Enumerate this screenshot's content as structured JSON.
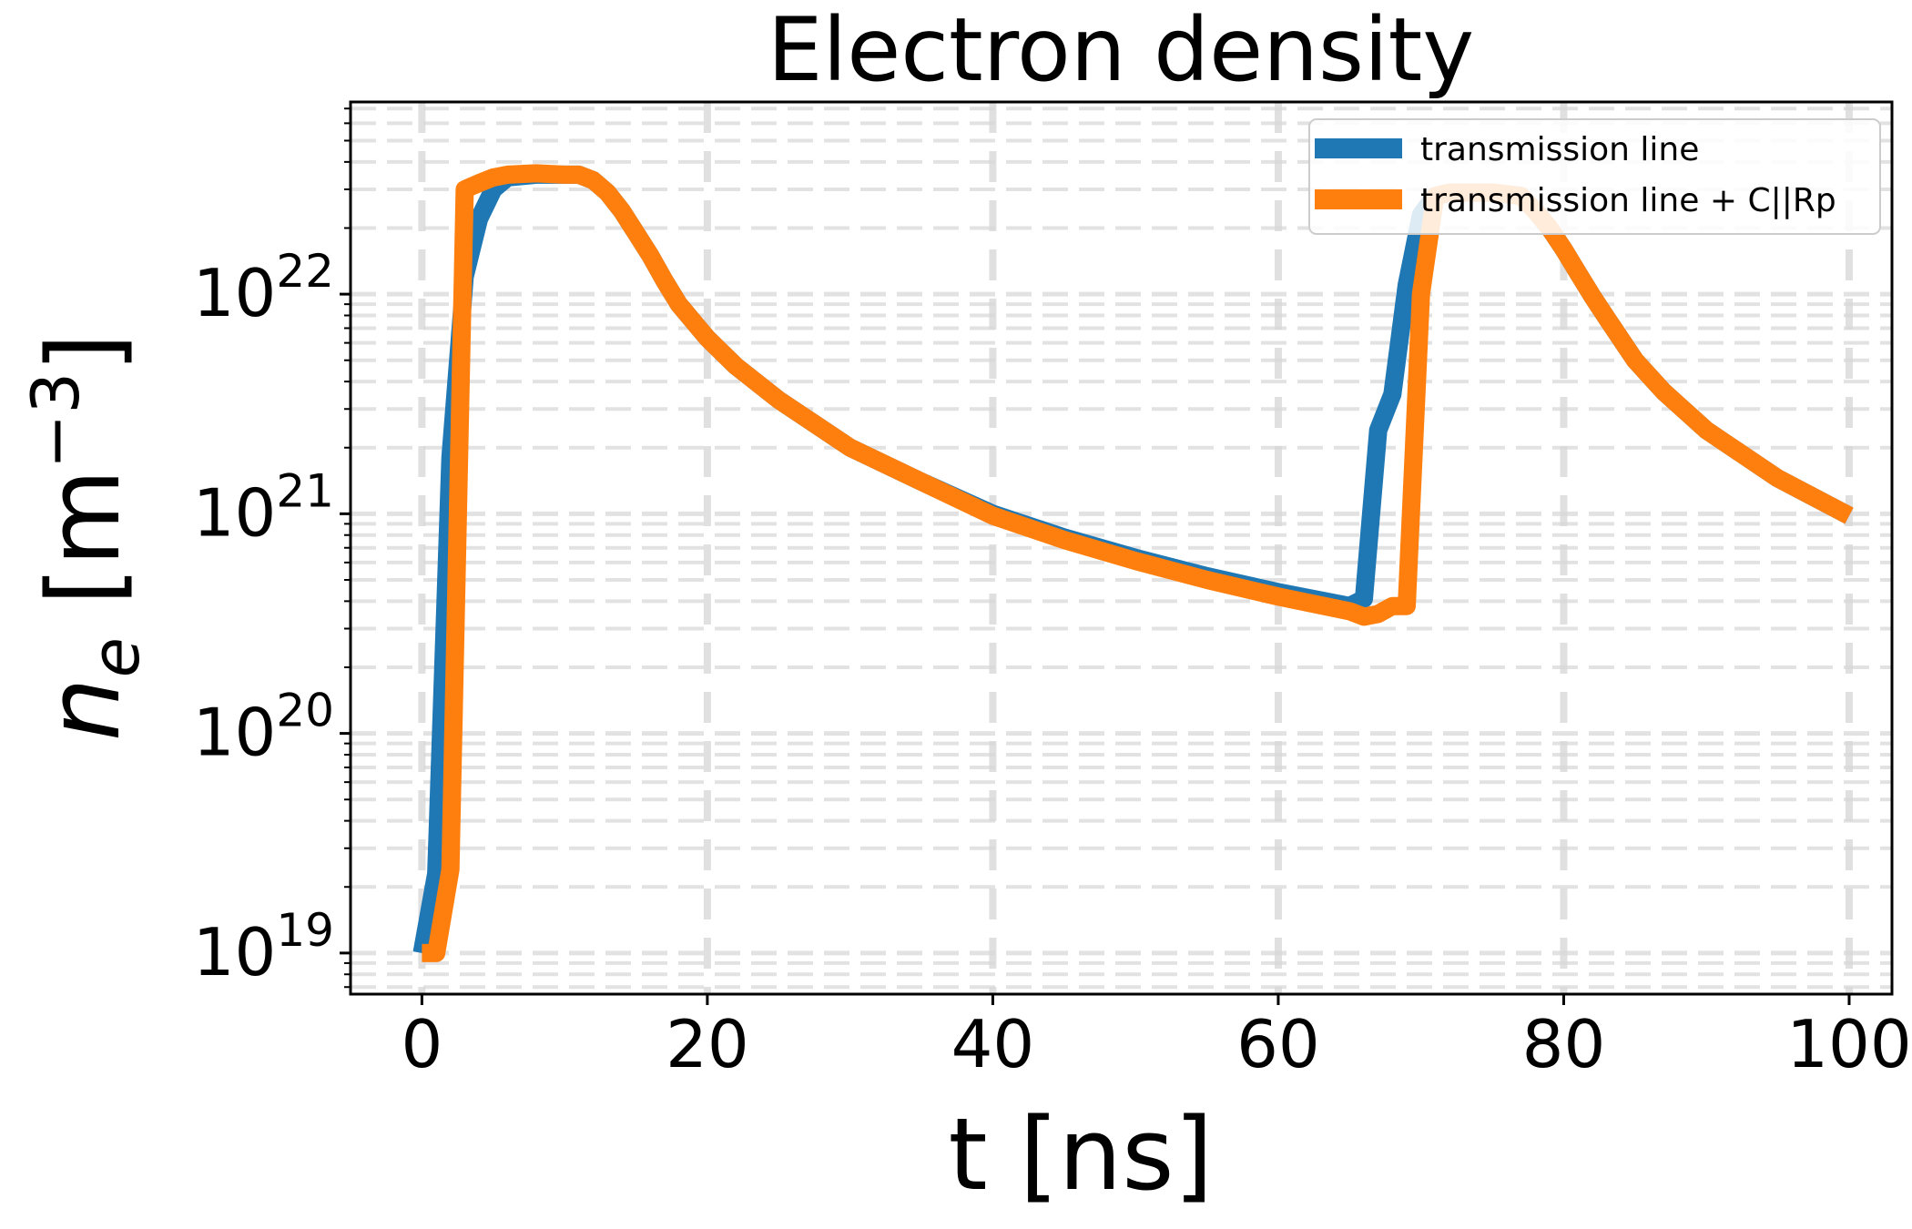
{
  "chart_data": {
    "type": "line",
    "title": "Electron density",
    "xlabel": "t [ns]",
    "ylabel": {
      "symbol": "n",
      "subscript": "e",
      "unit_open": " [m",
      "unit_exp": "−3",
      "unit_close": "]"
    },
    "xlim": [
      -5,
      103
    ],
    "ylim": [
      6.5e+18,
      7.5e+22
    ],
    "yscale": "log",
    "grid": true,
    "legend_position": "top-right",
    "xticks": [
      0,
      20,
      40,
      60,
      80,
      100
    ],
    "xtick_labels": [
      "0",
      "20",
      "40",
      "60",
      "80",
      "100"
    ],
    "yticks": [
      {
        "value": 1e+19,
        "base": "10",
        "exp": "19"
      },
      {
        "value": 1e+20,
        "base": "10",
        "exp": "20"
      },
      {
        "value": 1e+21,
        "base": "10",
        "exp": "21"
      },
      {
        "value": 1e+22,
        "base": "10",
        "exp": "22"
      }
    ],
    "series": [
      {
        "name": "transmission line",
        "color": "#1f77b4",
        "x": [
          0,
          1,
          2,
          3,
          4,
          5,
          6,
          8,
          10,
          11,
          12,
          13,
          14,
          15,
          16,
          17,
          18,
          20,
          22,
          25,
          30,
          35,
          40,
          45,
          50,
          55,
          60,
          65,
          66,
          67,
          68,
          69,
          70,
          71,
          72,
          75,
          77,
          78,
          79,
          80,
          81,
          82,
          83,
          85,
          87,
          90,
          95,
          100
        ],
        "y": [
          1e+19,
          2.3e+19,
          1.8e+21,
          1.2e+22,
          2.2e+22,
          3e+22,
          3.4e+22,
          3.5e+22,
          3.5e+22,
          3.5e+22,
          3.3e+22,
          2.9e+22,
          2.4e+22,
          1.9e+22,
          1.5e+22,
          1.15e+22,
          9e+21,
          6.3e+21,
          4.7e+21,
          3.3e+21,
          2e+21,
          1.4e+21,
          1e+21,
          7.8e+20,
          6.3e+20,
          5.2e+20,
          4.4e+20,
          3.8e+20,
          4.1e+20,
          2.4e+21,
          3.5e+21,
          1.1e+22,
          2.3e+22,
          2.8e+22,
          2.9e+22,
          2.9e+22,
          2.8e+22,
          2.4e+22,
          2e+22,
          1.6e+22,
          1.25e+22,
          9.8e+21,
          7.8e+21,
          5e+21,
          3.6e+21,
          2.4e+21,
          1.45e+21,
          9.8e+20
        ]
      },
      {
        "name": "transmission line + C||Rp",
        "color": "#ff7f0e",
        "x": [
          0,
          1,
          2,
          3,
          4,
          5,
          6,
          8,
          10,
          11,
          12,
          13,
          14,
          15,
          16,
          17,
          18,
          20,
          22,
          25,
          30,
          35,
          40,
          45,
          50,
          55,
          60,
          65,
          66,
          67,
          68,
          69,
          70,
          71,
          72,
          75,
          77,
          78,
          79,
          80,
          81,
          82,
          83,
          85,
          87,
          90,
          95,
          100
        ],
        "y": [
          1e+19,
          1e+19,
          2.4e+19,
          3e+22,
          3.2e+22,
          3.4e+22,
          3.5e+22,
          3.55e+22,
          3.5e+22,
          3.5e+22,
          3.3e+22,
          2.9e+22,
          2.4e+22,
          1.9e+22,
          1.5e+22,
          1.15e+22,
          9e+21,
          6.3e+21,
          4.7e+21,
          3.3e+21,
          2e+21,
          1.4e+21,
          9.8e+20,
          7.6e+20,
          6.1e+20,
          5e+20,
          4.2e+20,
          3.6e+20,
          3.4e+20,
          3.5e+20,
          3.8e+20,
          3.8e+20,
          1e+22,
          2.8e+22,
          2.9e+22,
          2.9e+22,
          2.8e+22,
          2.4e+22,
          2e+22,
          1.6e+22,
          1.25e+22,
          9.8e+21,
          7.8e+21,
          5e+21,
          3.6e+21,
          2.4e+21,
          1.45e+21,
          9.8e+20
        ]
      }
    ]
  }
}
